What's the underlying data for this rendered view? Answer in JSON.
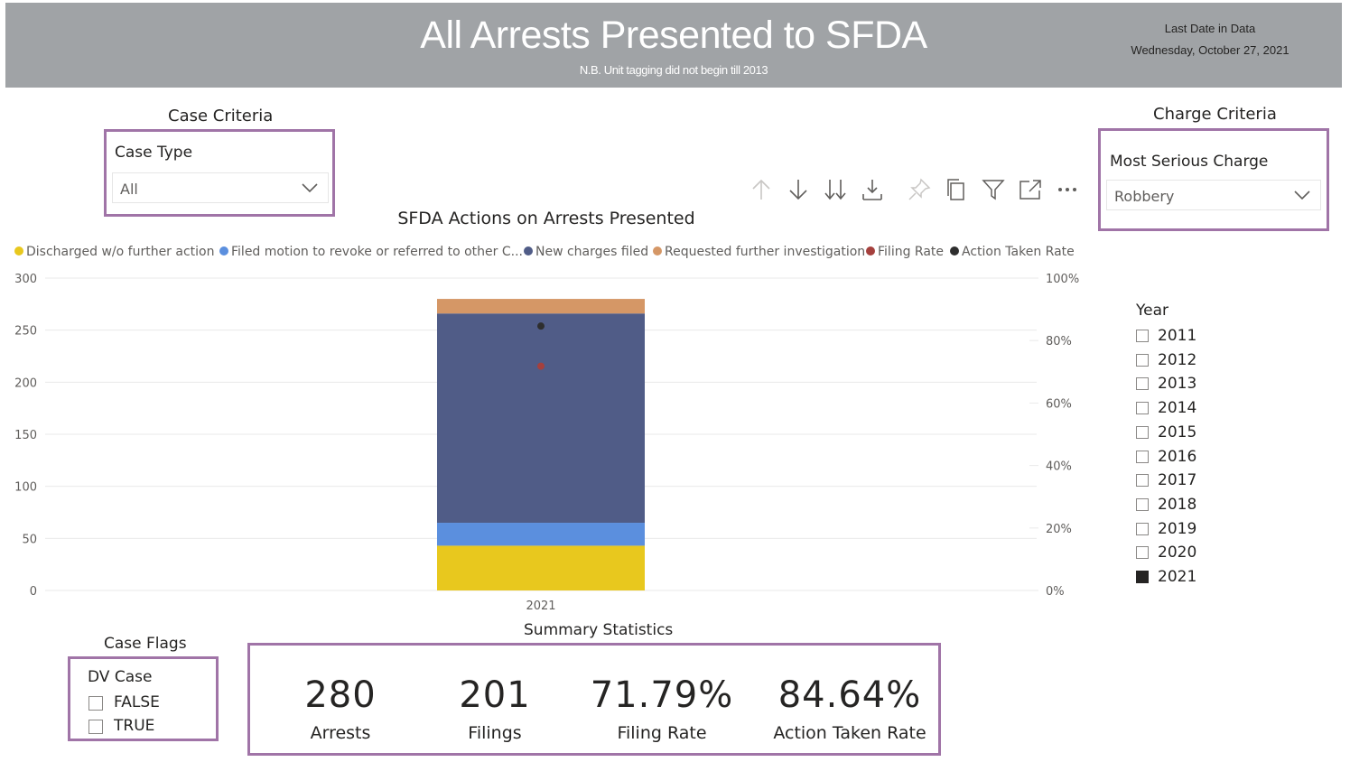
{
  "header": {
    "title": "All Arrests Presented to SFDA",
    "subtitle": "N.B. Unit tagging did not begin till 2013",
    "last_date_label": "Last Date in Data",
    "last_date_value": "Wednesday, October 27, 2021",
    "bg_color": "#a0a3a6"
  },
  "case_criteria": {
    "label": "Case Criteria",
    "slicer_title": "Case Type",
    "selected": "All"
  },
  "charge_criteria": {
    "label": "Charge Criteria",
    "slicer_title": "Most Serious Charge",
    "selected": "Robbery"
  },
  "toolbar": {
    "icons": [
      "drill-up-icon",
      "drill-down-icon",
      "expand-all-down-icon",
      "expand-hierarchy-icon",
      "pin-icon",
      "copy-icon",
      "filter-icon",
      "focus-mode-icon",
      "more-options-icon"
    ]
  },
  "chart_data": {
    "type": "bar",
    "title": "SFDA Actions on Arrests Presented",
    "categories": [
      "2021"
    ],
    "stacked": true,
    "series": [
      {
        "name": "Discharged w/o further action",
        "values": [
          43
        ],
        "color": "#e8c81e"
      },
      {
        "name": "Filed motion to revoke or referred to other C...",
        "values": [
          22
        ],
        "color": "#5b8fde"
      },
      {
        "name": "New charges filed",
        "values": [
          201
        ],
        "color": "#505c87"
      },
      {
        "name": "Requested further investigation",
        "values": [
          14
        ],
        "color": "#d59766"
      }
    ],
    "line_series": [
      {
        "name": "Filing Rate",
        "values": [
          0.7179
        ],
        "color": "#a5403d",
        "axis": "secondary"
      },
      {
        "name": "Action Taken Rate",
        "values": [
          0.8464
        ],
        "color": "#2e2e2e",
        "axis": "secondary"
      }
    ],
    "ylim": [
      0,
      300
    ],
    "y_ticks": [
      "0",
      "50",
      "100",
      "150",
      "200",
      "250",
      "300"
    ],
    "y2lim": [
      0,
      1
    ],
    "y2_ticks": [
      "0%",
      "20%",
      "40%",
      "60%",
      "80%",
      "100%"
    ],
    "grid": true,
    "legend_position": "top-left"
  },
  "year_slicer": {
    "title": "Year",
    "items": [
      {
        "label": "2011",
        "checked": false
      },
      {
        "label": "2012",
        "checked": false
      },
      {
        "label": "2013",
        "checked": false
      },
      {
        "label": "2014",
        "checked": false
      },
      {
        "label": "2015",
        "checked": false
      },
      {
        "label": "2016",
        "checked": false
      },
      {
        "label": "2017",
        "checked": false
      },
      {
        "label": "2018",
        "checked": false
      },
      {
        "label": "2019",
        "checked": false
      },
      {
        "label": "2020",
        "checked": false
      },
      {
        "label": "2021",
        "checked": true
      }
    ]
  },
  "case_flags": {
    "label": "Case Flags",
    "slicer_title": "DV Case",
    "items": [
      {
        "label": "FALSE",
        "checked": false
      },
      {
        "label": "TRUE",
        "checked": false
      }
    ]
  },
  "summary": {
    "label": "Summary Statistics",
    "kpis": [
      {
        "value": "280",
        "caption": "Arrests"
      },
      {
        "value": "201",
        "caption": "Filings"
      },
      {
        "value": "71.79%",
        "caption": "Filing Rate"
      },
      {
        "value": "84.64%",
        "caption": "Action Taken Rate"
      }
    ]
  },
  "accent_border_color": "#a074a7"
}
